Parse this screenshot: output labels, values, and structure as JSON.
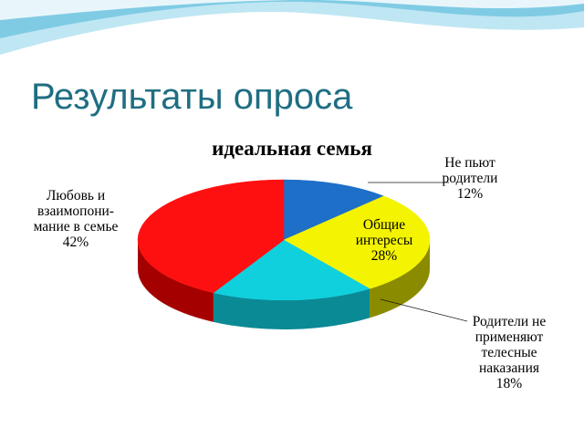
{
  "slide": {
    "title": "Результаты опроса"
  },
  "colors": {
    "title": "#1f6e82",
    "wave_light": "#bfe6f3",
    "wave_mid": "#7fcbe4"
  },
  "chart_data": {
    "type": "pie",
    "title": "идеальная семья",
    "style": "3d",
    "slices": [
      {
        "label": "Не пьют родители",
        "lines": [
          "Не пьют",
          "родители",
          "12%"
        ],
        "value": 12,
        "color": "#1e6fc8",
        "side": "#14498a"
      },
      {
        "label": "Общие интересы",
        "lines": [
          "Общие",
          "интересы",
          "28%"
        ],
        "value": 28,
        "color": "#f4f400",
        "side": "#8b8b00"
      },
      {
        "label": "Родители не применяют телесные наказания",
        "lines": [
          "Родители не",
          "применяют",
          "телесные",
          "наказания",
          "18%"
        ],
        "value": 18,
        "color": "#10d0dd",
        "side": "#0a8a95"
      },
      {
        "label": "Любовь и взаимопонимание в семье",
        "lines": [
          "Любовь и",
          "взаимопони-",
          "мание в семье",
          "42%"
        ],
        "value": 42,
        "color": "#ff1010",
        "side": "#a50000"
      }
    ]
  }
}
